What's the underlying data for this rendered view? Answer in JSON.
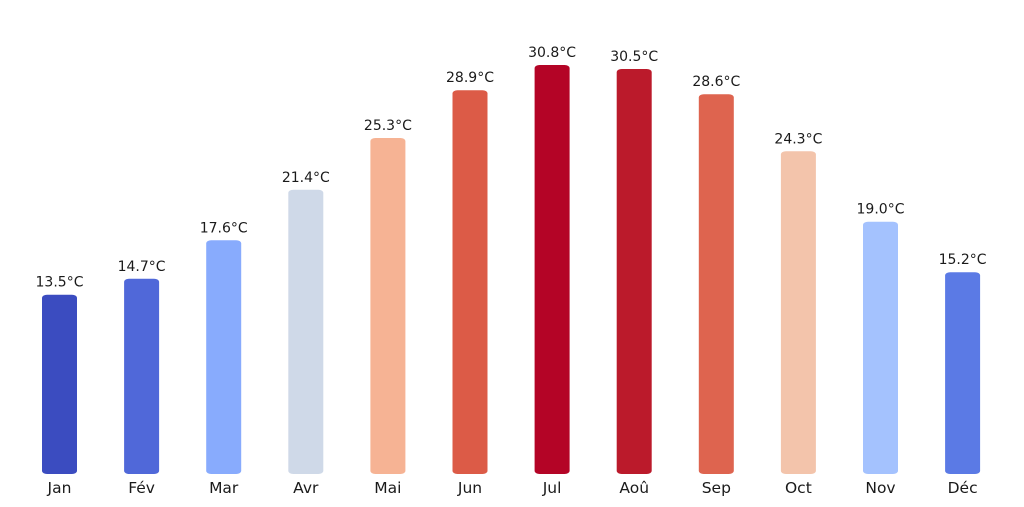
{
  "chart_data": {
    "type": "bar",
    "categories": [
      "Jan",
      "Fév",
      "Mar",
      "Avr",
      "Mai",
      "Jun",
      "Jul",
      "Aoû",
      "Sep",
      "Oct",
      "Nov",
      "Déc"
    ],
    "values": [
      13.5,
      14.7,
      17.6,
      21.4,
      25.3,
      28.9,
      30.8,
      30.5,
      28.6,
      24.3,
      19.0,
      15.2
    ],
    "value_labels": [
      "13.5°C",
      "14.7°C",
      "17.6°C",
      "21.4°C",
      "25.3°C",
      "28.9°C",
      "30.8°C",
      "30.5°C",
      "28.6°C",
      "24.3°C",
      "19.0°C",
      "15.2°C"
    ],
    "colors": [
      "#3b4cc0",
      "#5068d9",
      "#88abfd",
      "#cfd9e8",
      "#f6b394",
      "#dc5b47",
      "#b40426",
      "#bb1a2b",
      "#de644f",
      "#f3c4ab",
      "#a4c2fe",
      "#5b7ae5"
    ],
    "title": "",
    "xlabel": "",
    "ylabel": "",
    "ylim": [
      0,
      30.8
    ],
    "grid": false,
    "legend": "none"
  }
}
